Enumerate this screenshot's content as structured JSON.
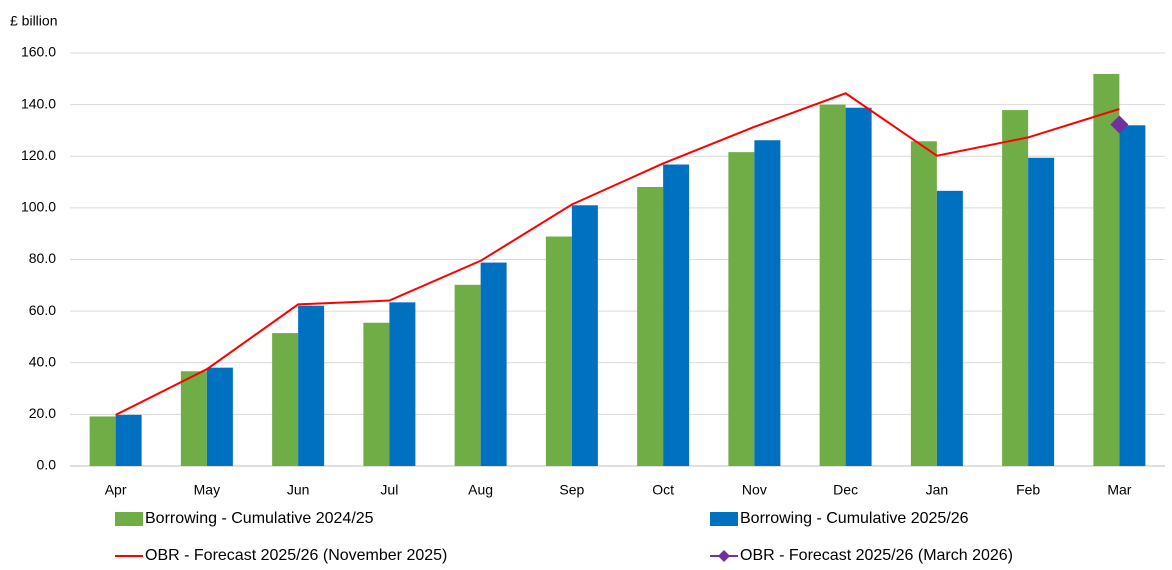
{
  "chart_data": {
    "type": "bar",
    "y_axis_label": "£ billion",
    "categories": [
      "Apr",
      "May",
      "Jun",
      "Jul",
      "Aug",
      "Sep",
      "Oct",
      "Nov",
      "Dec",
      "Jan",
      "Feb",
      "Mar"
    ],
    "series": [
      {
        "name": "Borrowing - Cumulative 2024/25",
        "type": "bar",
        "color": "#70ad47",
        "values": [
          19.2,
          36.7,
          51.5,
          55.5,
          70.2,
          88.9,
          108.1,
          121.6,
          140.0,
          125.8,
          137.9,
          151.9
        ]
      },
      {
        "name": "Borrowing - Cumulative 2025/26",
        "type": "bar",
        "color": "#0070c0",
        "values": [
          19.8,
          38.1,
          62.1,
          63.4,
          78.8,
          101.0,
          116.8,
          126.2,
          138.8,
          106.6,
          119.4,
          132.0
        ]
      },
      {
        "name": "OBR - Forecast 2025/26 (November 2025)",
        "type": "line",
        "color": "#ff0000",
        "values": [
          19.8,
          37.5,
          62.6,
          64.1,
          79.5,
          101.3,
          117.2,
          131.4,
          144.4,
          120.2,
          127.3,
          138.3
        ]
      },
      {
        "name": "OBR - Forecast 2025/26 (March 2026)",
        "type": "point",
        "color": "#7030a0",
        "values": [
          null,
          null,
          null,
          null,
          null,
          null,
          null,
          null,
          null,
          null,
          null,
          132.3
        ]
      }
    ],
    "ylim": [
      0,
      160
    ],
    "yticks": [
      {
        "value": 0,
        "label": "0.0"
      },
      {
        "value": 20,
        "label": "20.0"
      },
      {
        "value": 40,
        "label": "40.0"
      },
      {
        "value": 60,
        "label": "60.0"
      },
      {
        "value": 80,
        "label": "80.0"
      },
      {
        "value": 100,
        "label": "100.0"
      },
      {
        "value": 120,
        "label": "120.0"
      },
      {
        "value": 140,
        "label": "140.0"
      },
      {
        "value": 160,
        "label": "160.0"
      }
    ],
    "grid": true
  }
}
